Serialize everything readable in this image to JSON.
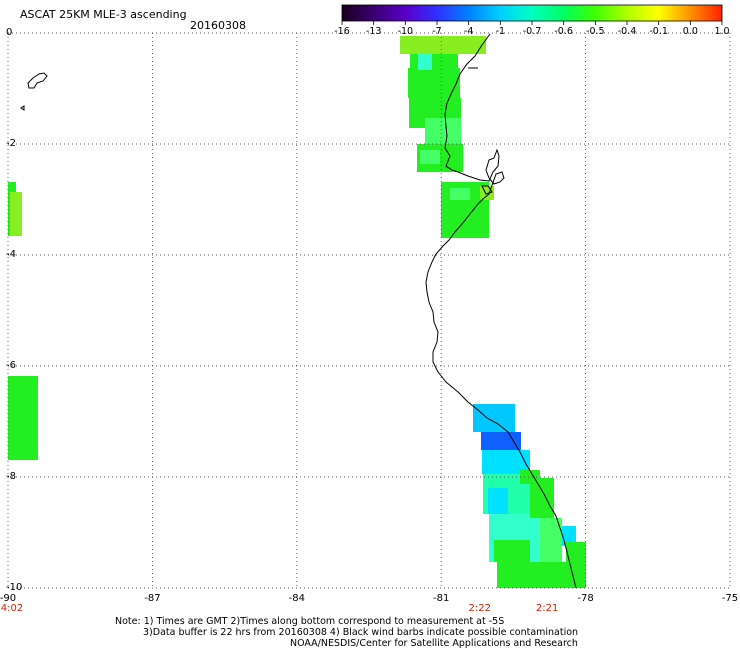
{
  "header": {
    "title": "ASCAT 25KM MLE-3 ascending",
    "date": "20160308"
  },
  "colorbar": {
    "labels": [
      "-16",
      "-13",
      "-10",
      "-7",
      "-4",
      "-1",
      "-0.7",
      "-0.6",
      "-0.5",
      "-0.4",
      "-0.1",
      "0.0",
      "1.0"
    ],
    "colors": [
      "#1a0020",
      "#3a0070",
      "#5a00c8",
      "#3030ff",
      "#0080ff",
      "#00d0ff",
      "#00ffc0",
      "#00ff60",
      "#40ff00",
      "#b0ff00",
      "#ffff00",
      "#ff9000",
      "#ff2000"
    ]
  },
  "axes": {
    "y_labels": [
      "0",
      "-2",
      "-4",
      "-6",
      "-8",
      "-10"
    ],
    "x_labels": [
      "-90",
      "-87",
      "-84",
      "-81",
      "-78",
      "-75"
    ]
  },
  "times": [
    {
      "label": "4:02",
      "lon": -90
    },
    {
      "label": "2:22",
      "lon": -80.2
    },
    {
      "label": "2:21",
      "lon": -78.8
    }
  ],
  "swath_colors": {
    "green": "#22ee22",
    "yellow_green": "#88ee22",
    "light_green": "#44ff66",
    "cyan": "#00e0ff",
    "sky": "#00c8ff",
    "blue": "#1060ff",
    "aqua": "#22ffaa",
    "mint": "#33ffcc"
  },
  "notes": {
    "line1": "Note: 1) Times are GMT 2)Times along bottom correspond to measurement at -5S",
    "line2": "3)Data buffer is 22 hrs from 20160308 4) Black wind barbs indicate possible contamination",
    "line3": "NOAA/NESDIS/Center for Satellite Applications and Research"
  }
}
